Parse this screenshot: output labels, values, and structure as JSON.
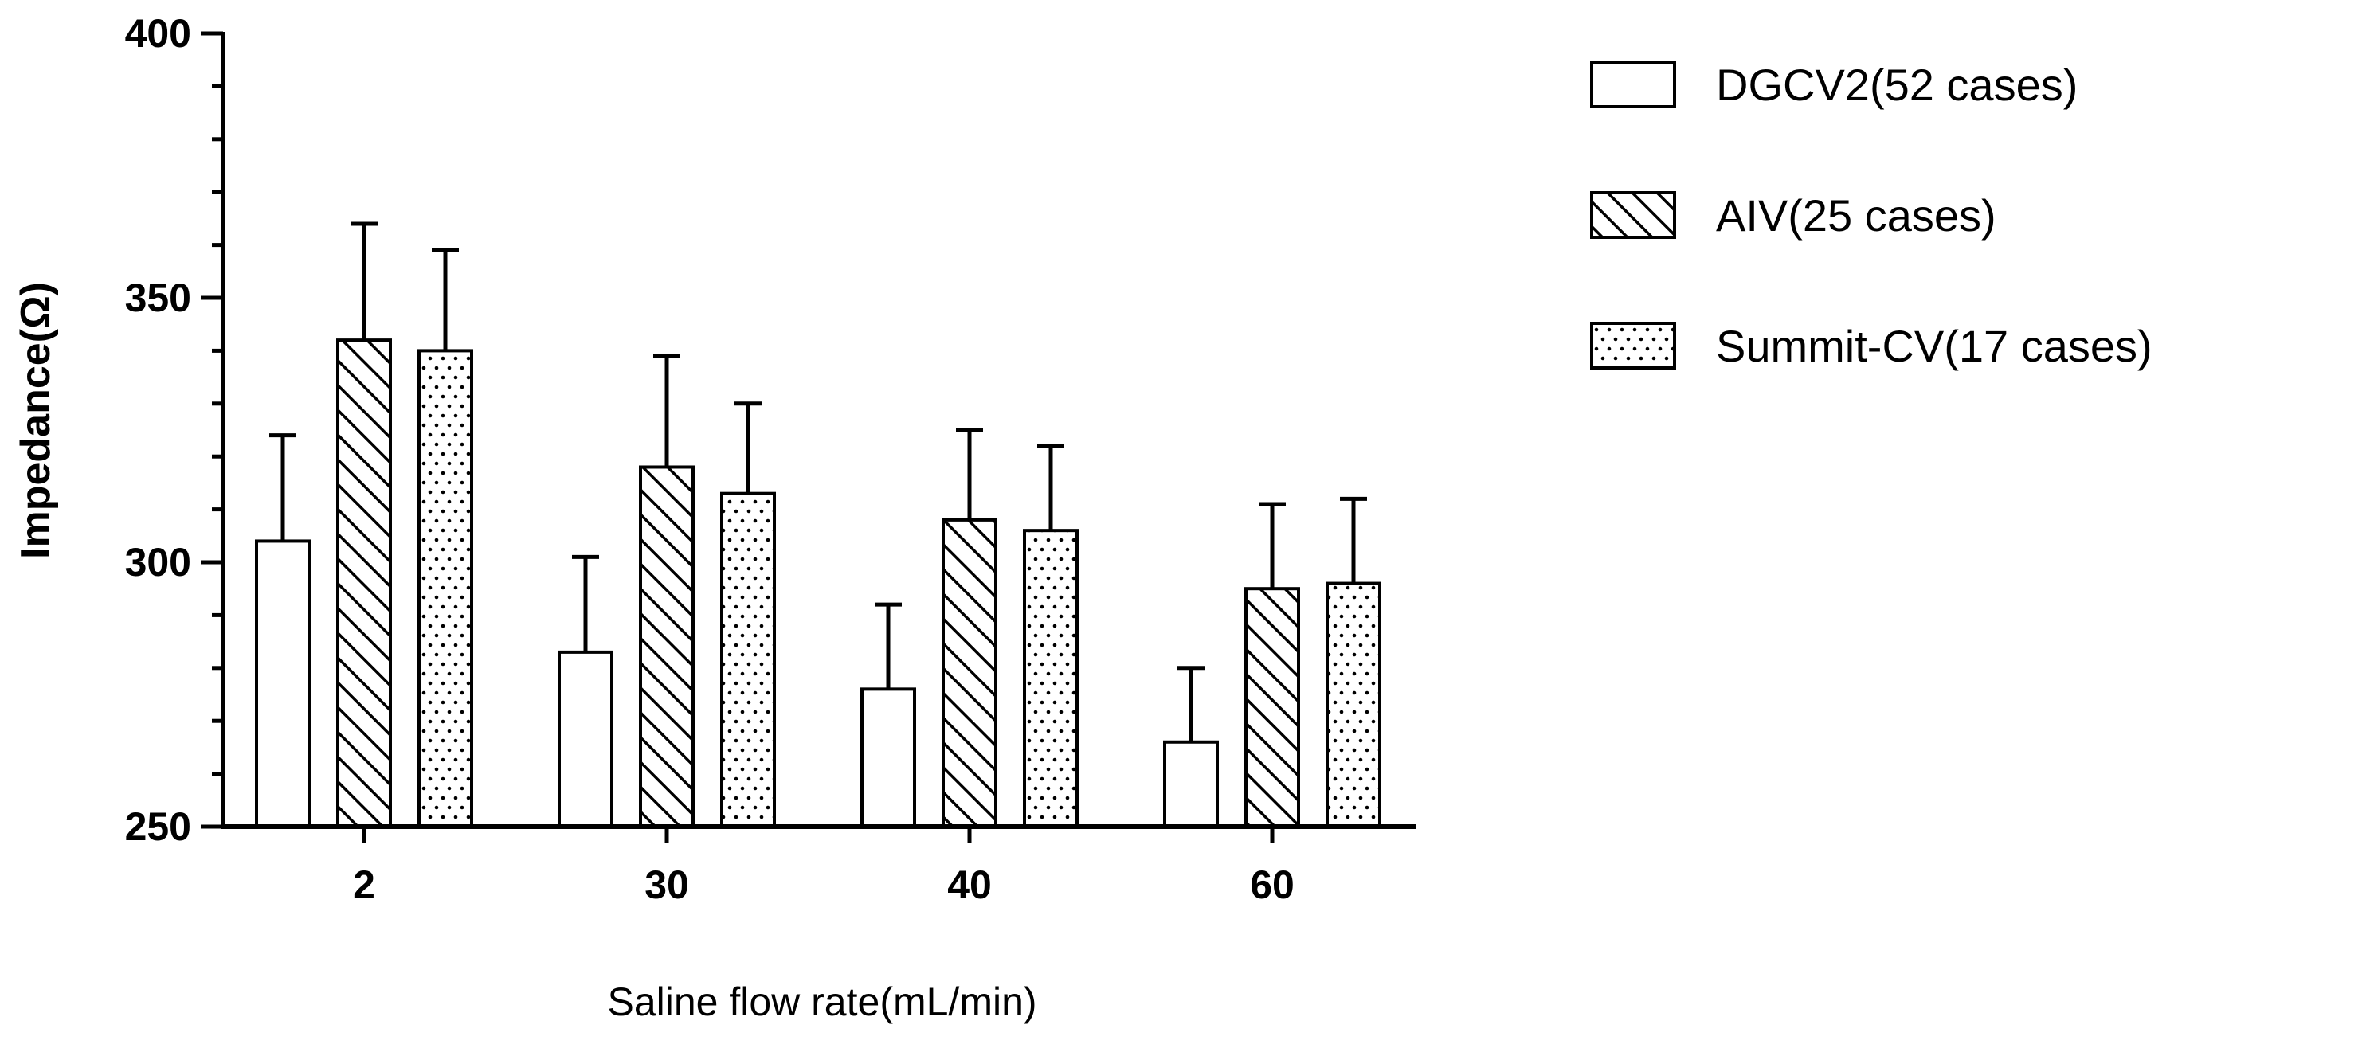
{
  "chart_data": {
    "type": "bar",
    "xlabel": "Saline flow rate(mL/min)",
    "ylabel": "Impedance(Ω)",
    "ylim": [
      250,
      400
    ],
    "yticks": [
      "250",
      "300",
      "350",
      "400"
    ],
    "categories": [
      "2",
      "30",
      "40",
      "60"
    ],
    "series": [
      {
        "name": "DGCV2(52 cases)",
        "pattern": "none",
        "values": [
          304,
          283,
          276,
          266
        ],
        "errors": [
          20,
          18,
          16,
          14
        ]
      },
      {
        "name": "AIV(25 cases)",
        "pattern": "diagonal-hatch",
        "values": [
          342,
          318,
          308,
          295
        ],
        "errors": [
          22,
          21,
          17,
          16
        ]
      },
      {
        "name": "Summit-CV(17 cases)",
        "pattern": "dots",
        "values": [
          340,
          313,
          306,
          296
        ],
        "errors": [
          19,
          17,
          16,
          16
        ]
      }
    ],
    "error_bars": "upper",
    "legend_position": "top-right",
    "grid": false,
    "colors": {
      "bar_fill": "#ffffff",
      "stroke": "#000000"
    }
  }
}
